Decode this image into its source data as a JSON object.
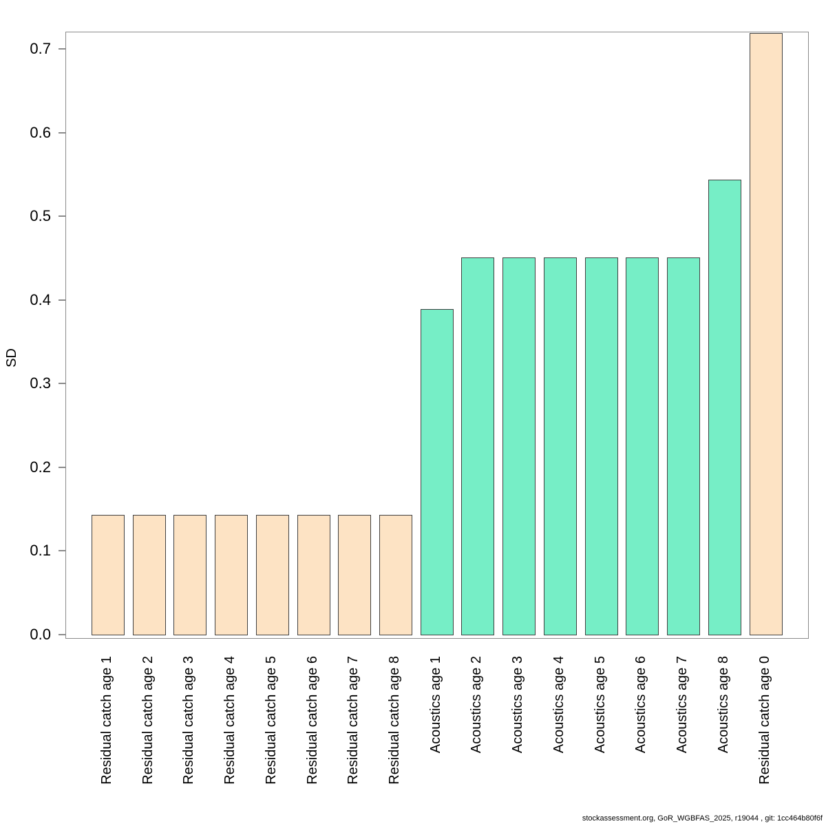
{
  "chart_data": {
    "type": "bar",
    "title": "",
    "xlabel": "",
    "ylabel": "SD",
    "ylim": [
      0,
      0.72
    ],
    "yticks": [
      0.0,
      0.1,
      0.2,
      0.3,
      0.4,
      0.5,
      0.6,
      0.7
    ],
    "grid": false,
    "legend": null,
    "categories": [
      "Residual catch age 1",
      "Residual catch age 2",
      "Residual catch age 3",
      "Residual catch age 4",
      "Residual catch age 5",
      "Residual catch age 6",
      "Residual catch age 7",
      "Residual catch age 8",
      "Acoustics age 1",
      "Acoustics age 2",
      "Acoustics age 3",
      "Acoustics age 4",
      "Acoustics age 5",
      "Acoustics age 6",
      "Acoustics age 7",
      "Acoustics age 8",
      "Residual catch age 0"
    ],
    "values": [
      0.144,
      0.144,
      0.144,
      0.144,
      0.144,
      0.144,
      0.144,
      0.144,
      0.39,
      0.452,
      0.452,
      0.452,
      0.452,
      0.452,
      0.452,
      0.545,
      0.72
    ],
    "groups": [
      "catch",
      "catch",
      "catch",
      "catch",
      "catch",
      "catch",
      "catch",
      "catch",
      "acoustics",
      "acoustics",
      "acoustics",
      "acoustics",
      "acoustics",
      "acoustics",
      "acoustics",
      "acoustics",
      "catch"
    ],
    "clipped_bars": [
      "Residual catch age 0"
    ]
  },
  "colors": {
    "catch_fill": "#FDE3C4",
    "acoustics_fill": "#76EEC6",
    "bar_border": "#404040",
    "axis": "#8A8A8A",
    "text": "#000000"
  },
  "footer": {
    "text": "stockassessment.org, GoR_WGBFAS_2025, r19044 , git: 1cc464b80f6f"
  }
}
